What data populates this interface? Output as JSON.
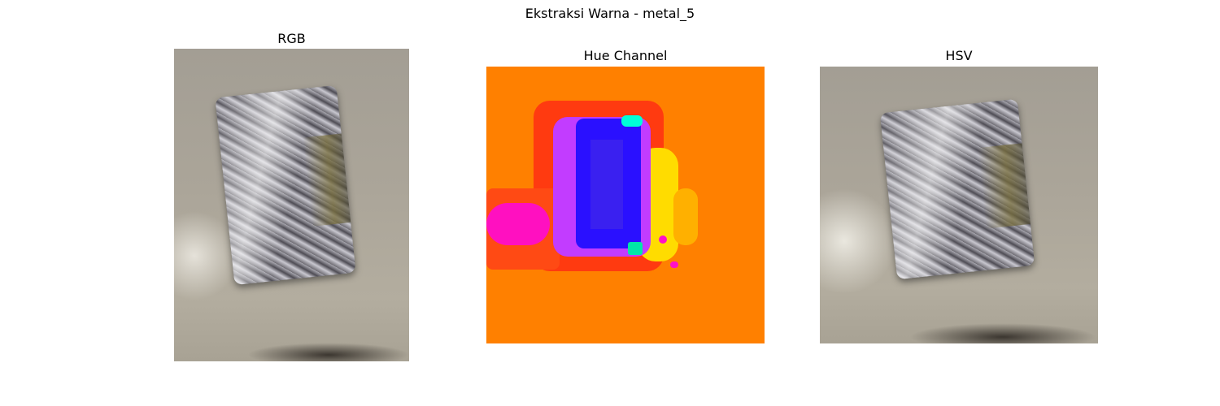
{
  "figure": {
    "suptitle": "Ekstraksi Warna - metal_5"
  },
  "panels": [
    {
      "title": "RGB",
      "image": "aluminum-foil-package-photo"
    },
    {
      "title": "Hue Channel",
      "image": "hue-channel-colormap-image"
    },
    {
      "title": "HSV",
      "image": "aluminum-foil-package-photo-hsv"
    }
  ],
  "colors": {
    "background": "#ffffff",
    "hue_orange": "#ff8000",
    "hue_red": "#ff3010",
    "hue_magenta": "#ff00c8",
    "hue_blue": "#2a10ff",
    "hue_violet": "#9a2cff",
    "hue_yellow": "#ffdc00",
    "hue_cyan": "#00ffe0",
    "floor": "#aba599",
    "foil": "#7d7b82"
  }
}
